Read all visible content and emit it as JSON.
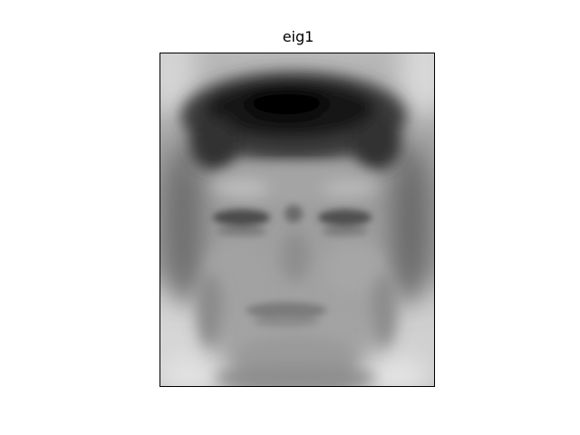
{
  "figure": {
    "title": "eig1"
  },
  "image": {
    "depicts": "grayscale-face-eigenimage",
    "colormap": "gray",
    "colors": {
      "dark": "#0a0a0a",
      "mid": "#9a9a9a",
      "light": "#e6e6e6"
    }
  }
}
